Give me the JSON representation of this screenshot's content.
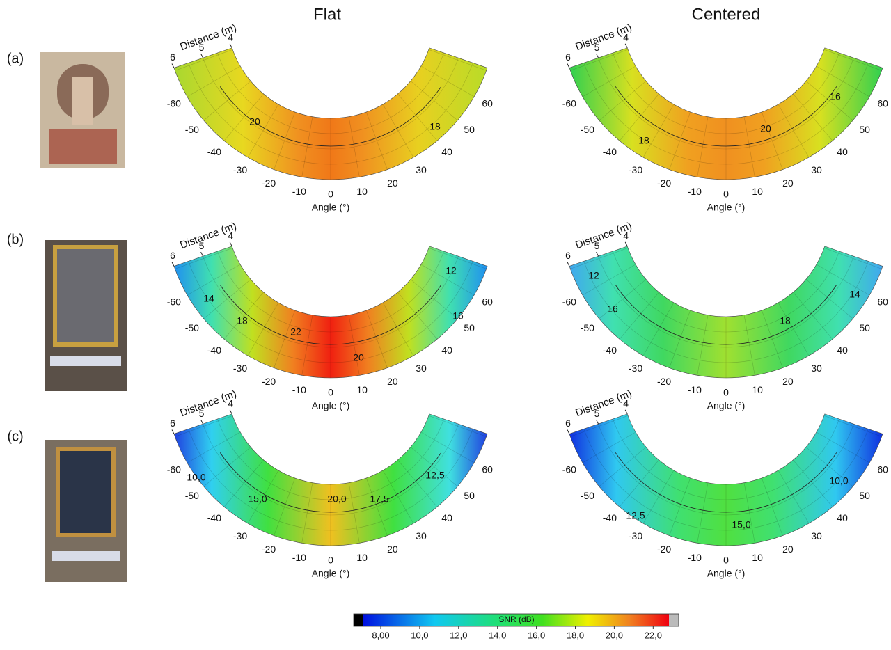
{
  "column_titles": [
    "Flat",
    "Centered"
  ],
  "row_labels": [
    "(a)",
    "(b)",
    "(c)"
  ],
  "panels": [
    {
      "distance_label": "Distance (m)",
      "distance_ticks": [
        6,
        5,
        4
      ],
      "angle_ticks": [
        -60,
        -50,
        -40,
        -30,
        -20,
        -10,
        0,
        10,
        20,
        30,
        40,
        50,
        60
      ],
      "angle_label": "Angle (°)",
      "contour_labels": [
        "20",
        "18"
      ]
    },
    {
      "distance_label": "Distance (m)",
      "distance_ticks": [
        6,
        5,
        4
      ],
      "angle_ticks": [
        -60,
        -50,
        -40,
        -30,
        -20,
        -10,
        0,
        10,
        20,
        30,
        40,
        50,
        60
      ],
      "angle_label": "Angle (°)",
      "contour_labels": [
        "16",
        "20",
        "18"
      ]
    },
    {
      "distance_label": "Distance (m)",
      "distance_ticks": [
        6,
        5,
        4
      ],
      "angle_ticks": [
        -60,
        -50,
        -40,
        -30,
        -20,
        -10,
        0,
        10,
        20,
        30,
        40,
        50,
        60
      ],
      "angle_label": "Angle (°)",
      "contour_labels": [
        "14",
        "18",
        "22",
        "20",
        "16",
        "12"
      ]
    },
    {
      "distance_label": "Distance (m)",
      "distance_ticks": [
        6,
        5,
        4
      ],
      "angle_ticks": [
        -60,
        -50,
        -40,
        -30,
        -20,
        -10,
        0,
        10,
        20,
        30,
        40,
        50,
        60
      ],
      "angle_label": "Angle (°)",
      "contour_labels": [
        "12",
        "16",
        "18",
        "14"
      ]
    },
    {
      "distance_label": "Distance (m)",
      "distance_ticks": [
        6,
        5,
        4
      ],
      "angle_ticks": [
        -60,
        -50,
        -40,
        -30,
        -20,
        -10,
        0,
        10,
        20,
        30,
        40,
        50,
        60
      ],
      "angle_label": "Angle (°)",
      "contour_labels": [
        "10,0",
        "15,0",
        "20,0",
        "17,5",
        "12,5"
      ]
    },
    {
      "distance_label": "Distance (m)",
      "distance_ticks": [
        6,
        5,
        4
      ],
      "angle_ticks": [
        -60,
        -50,
        -40,
        -30,
        -20,
        -10,
        0,
        10,
        20,
        30,
        40,
        50,
        60
      ],
      "angle_label": "Angle (°)",
      "contour_labels": [
        "12,5",
        "15,0",
        "10,0"
      ]
    }
  ],
  "colorbar": {
    "title": "SNR (dB)",
    "tick_labels": [
      "8,00",
      "10,0",
      "12,0",
      "14,0",
      "16,0",
      "18,0",
      "20,0",
      "22,0"
    ]
  }
}
